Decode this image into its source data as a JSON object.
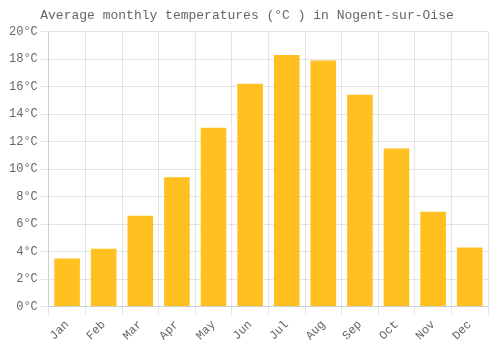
{
  "chart_data": {
    "type": "bar",
    "title": "Average monthly temperatures (°C ) in Nogent-sur-Oise",
    "categories": [
      "Jan",
      "Feb",
      "Mar",
      "Apr",
      "May",
      "Jun",
      "Jul",
      "Aug",
      "Sep",
      "Oct",
      "Nov",
      "Dec"
    ],
    "values": [
      3.5,
      4.2,
      6.6,
      9.4,
      13.0,
      16.2,
      18.3,
      17.9,
      15.4,
      11.5,
      6.9,
      4.3
    ],
    "color": "#FFC020",
    "ylim": [
      0,
      20
    ],
    "yticks": [
      {
        "value": 0,
        "label": "0°C"
      },
      {
        "value": 2,
        "label": "2°C"
      },
      {
        "value": 4,
        "label": "4°C"
      },
      {
        "value": 6,
        "label": "6°C"
      },
      {
        "value": 8,
        "label": "8°C"
      },
      {
        "value": 10,
        "label": "10°C"
      },
      {
        "value": 12,
        "label": "12°C"
      },
      {
        "value": 14,
        "label": "14°C"
      },
      {
        "value": 16,
        "label": "16°C"
      },
      {
        "value": 18,
        "label": "18°C"
      },
      {
        "value": 20,
        "label": "20°C"
      }
    ],
    "grid": true
  }
}
